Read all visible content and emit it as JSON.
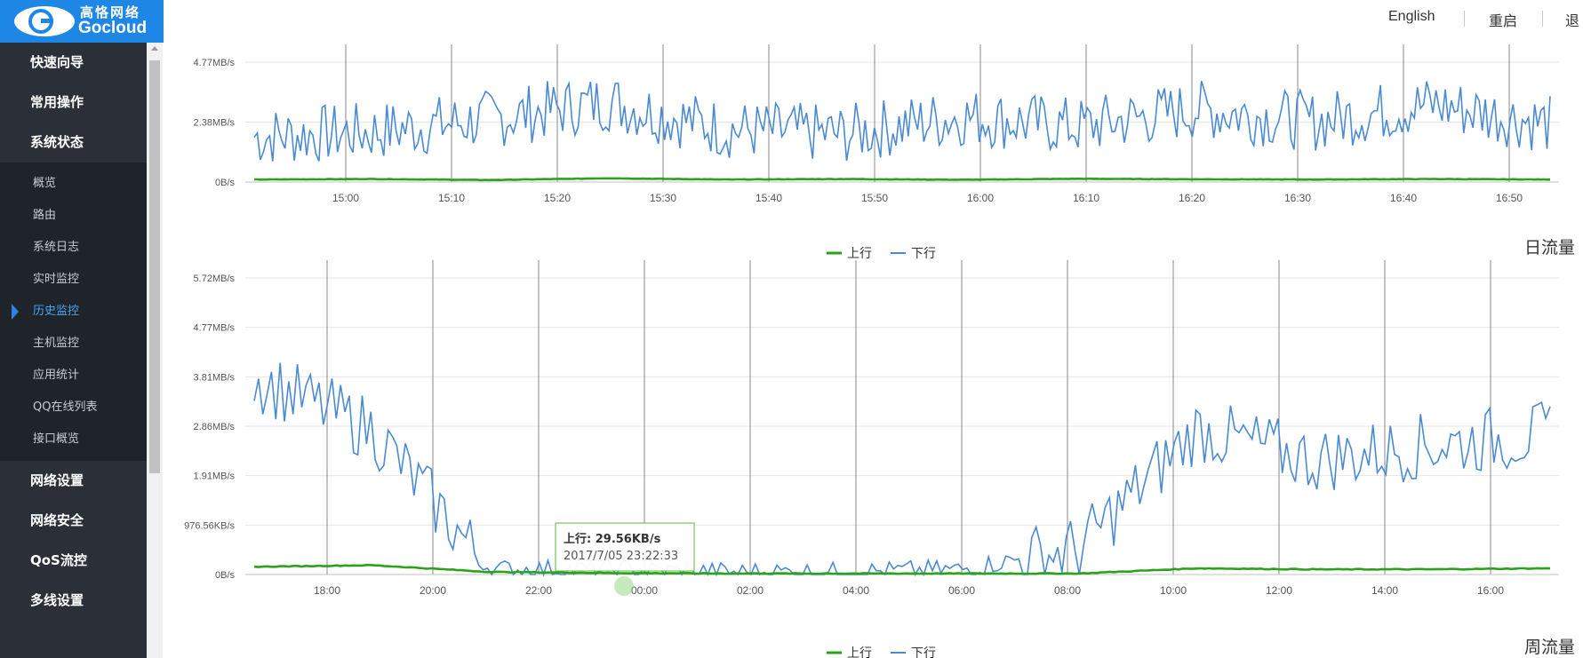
{
  "logo": {
    "brand_cn": "高恪网络",
    "brand_en": "Gocloud"
  },
  "header": {
    "english": "English",
    "restart": "重启",
    "logout": "退"
  },
  "sidebar": {
    "sections_top": [
      "快速向导",
      "常用操作",
      "系统状态"
    ],
    "subitems": [
      "概览",
      "路由",
      "系统日志",
      "实时监控",
      "历史监控",
      "主机监控",
      "应用统计",
      "QQ在线列表",
      "接口概览"
    ],
    "active_index": 4,
    "sections_bottom": [
      "网络设置",
      "网络安全",
      "QoS流控",
      "多线设置"
    ]
  },
  "colors": {
    "up": "#2aa31a",
    "down": "#4a8ad2",
    "accent": "#1e87e6",
    "sidebar_bg": "#2a2f38"
  },
  "chart_data": [
    {
      "type": "line",
      "title": "",
      "x": [
        "15:00",
        "15:10",
        "15:20",
        "15:30",
        "15:40",
        "15:50",
        "16:00",
        "16:10",
        "16:20",
        "16:30",
        "16:40",
        "16:50"
      ],
      "y_ticks": [
        "0B/s",
        "2.38MB/s",
        "4.77MB/s"
      ],
      "series": [
        {
          "name": "上行",
          "values": [
            0.1,
            0.12,
            0.08,
            0.15,
            0.1,
            0.12,
            0.09,
            0.13,
            0.11,
            0.1,
            0.12,
            0.1
          ]
        },
        {
          "name": "下行",
          "values": [
            1.8,
            2.0,
            2.5,
            3.2,
            2.1,
            1.9,
            2.6,
            2.2,
            2.9,
            2.4,
            3.1,
            2.3
          ]
        }
      ],
      "legend": "bottom-center",
      "grid": true
    },
    {
      "type": "line",
      "title": "日流量",
      "x": [
        "18:00",
        "20:00",
        "22:00",
        "00:00",
        "02:00",
        "04:00",
        "06:00",
        "08:00",
        "10:00",
        "12:00",
        "14:00",
        "16:00"
      ],
      "y_ticks": [
        "0B/s",
        "976.56KB/s",
        "1.91MB/s",
        "2.86MB/s",
        "3.81MB/s",
        "4.77MB/s",
        "5.72MB/s"
      ],
      "series": [
        {
          "name": "上行",
          "values": [
            0.15,
            0.18,
            0.05,
            0.03,
            0.02,
            0.02,
            0.02,
            0.02,
            0.12,
            0.1,
            0.1,
            0.12
          ]
        },
        {
          "name": "下行",
          "values": [
            3.8,
            2.8,
            0.1,
            0.1,
            0.05,
            0.05,
            0.1,
            0.5,
            2.8,
            2.2,
            2.5,
            2.7
          ]
        }
      ],
      "tooltip": {
        "label": "上行: 29.56KB/s",
        "time": "2017/7/05 23:22:33"
      },
      "legend": "bottom-center",
      "grid": true
    },
    {
      "type": "line",
      "title": "周流量",
      "series": [
        {
          "name": "上行"
        },
        {
          "name": "下行"
        }
      ],
      "legend": "bottom-center"
    }
  ]
}
